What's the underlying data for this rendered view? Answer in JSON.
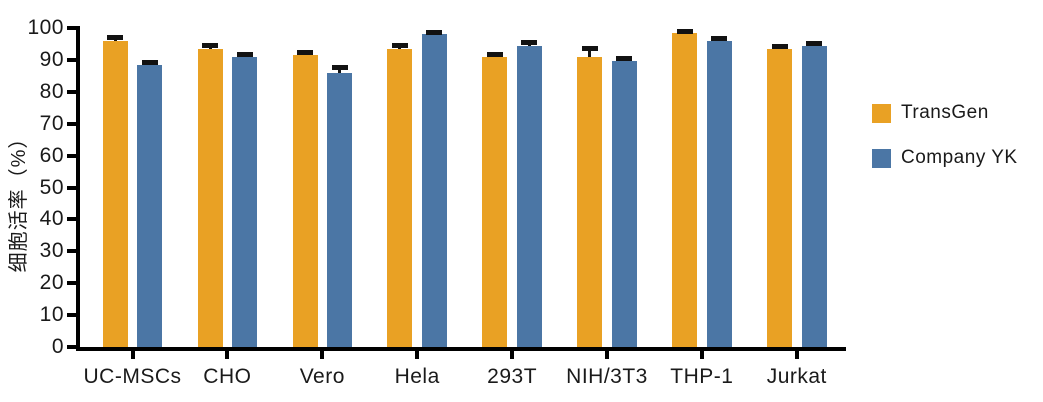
{
  "chart_data": {
    "type": "bar",
    "title": "",
    "xlabel": "",
    "ylabel": "细胞活率（%）",
    "ylim": [
      0,
      100
    ],
    "yticks": [
      0,
      10,
      20,
      30,
      40,
      50,
      60,
      70,
      80,
      90,
      100
    ],
    "grid": false,
    "legend_position": "right",
    "axis_color": "#000000",
    "error_color": "#121212",
    "categories": [
      "UC-MSCs",
      "CHO",
      "Vero",
      "Hela",
      "293T",
      "NIH/3T3",
      "THP-1",
      "Jurkat"
    ],
    "series": [
      {
        "name": "TransGen",
        "color": "#E9A124",
        "values": [
          96,
          93.5,
          91.5,
          93.5,
          91,
          91,
          98.5,
          93.5
        ],
        "errors": [
          1.0,
          1.0,
          0.8,
          1.0,
          0.6,
          2.5,
          0.5,
          0.8
        ]
      },
      {
        "name": "Company YK",
        "color": "#4B76A5",
        "values": [
          88.5,
          91,
          86,
          98,
          94.5,
          89.5,
          96,
          94.5
        ],
        "errors": [
          0.8,
          0.8,
          1.5,
          0.6,
          1.0,
          0.8,
          0.8,
          0.5
        ]
      }
    ]
  }
}
